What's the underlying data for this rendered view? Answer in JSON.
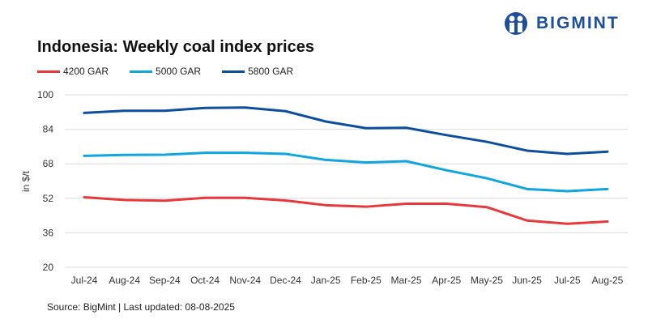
{
  "brand": {
    "name": "BIGMINT"
  },
  "source": "Source: BigMint | Last updated: 08-08-2025",
  "chart_data": {
    "type": "line",
    "title": "Indonesia: Weekly coal index prices",
    "xlabel": "",
    "ylabel": "in $/t",
    "ylim": [
      20,
      100
    ],
    "yticks": [
      "20",
      "36",
      "52",
      "68",
      "84",
      "100"
    ],
    "grid": true,
    "legend_position": "top-left",
    "categories": [
      "Jul-24",
      "Aug-24",
      "Sep-24",
      "Oct-24",
      "Nov-24",
      "Dec-24",
      "Jan-25",
      "Feb-25",
      "Mar-25",
      "Apr-25",
      "May-25",
      "Jun-25",
      "Jul-25",
      "Aug-25"
    ],
    "series": [
      {
        "name": "4200 GAR",
        "color": "#e8383b",
        "values": [
          52.5,
          51.2,
          50.9,
          52.2,
          52.2,
          51.0,
          48.8,
          48.1,
          49.5,
          49.5,
          47.9,
          41.7,
          40.2,
          41.2
        ]
      },
      {
        "name": "5000 GAR",
        "color": "#0ea5e0",
        "values": [
          71.7,
          72.1,
          72.2,
          73.1,
          73.1,
          72.6,
          69.8,
          68.6,
          69.2,
          65.0,
          61.3,
          56.3,
          55.3,
          56.3
        ]
      },
      {
        "name": "5800 GAR",
        "color": "#0b4f9e",
        "values": [
          91.6,
          92.6,
          92.6,
          93.9,
          94.1,
          92.4,
          87.6,
          84.5,
          84.7,
          81.3,
          78.2,
          74.1,
          72.6,
          73.6
        ]
      }
    ]
  }
}
